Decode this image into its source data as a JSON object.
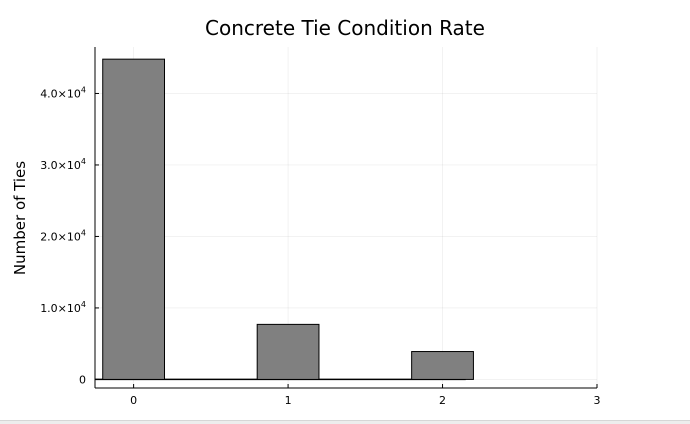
{
  "chart_data": {
    "type": "bar",
    "title": "Concrete Tie Condition Rate",
    "xlabel": "",
    "ylabel": "Number of Ties",
    "categories": [
      0,
      1,
      2
    ],
    "values": [
      44800,
      7700,
      3900
    ],
    "bar_width": 0.4,
    "bar_color": "#808080",
    "bar_edge_color": "#000000",
    "xlim": [
      -0.25,
      3
    ],
    "ylim": [
      -1200,
      46500
    ],
    "xticks": [
      {
        "value": 0,
        "label": "0"
      },
      {
        "value": 1,
        "label": "1"
      },
      {
        "value": 2,
        "label": "2"
      },
      {
        "value": 3,
        "label": "3"
      }
    ],
    "yticks": [
      {
        "value": 0,
        "mantissa": "0",
        "exp": ""
      },
      {
        "value": 10000,
        "mantissa": "1.0×10",
        "exp": "4"
      },
      {
        "value": 20000,
        "mantissa": "2.0×10",
        "exp": "4"
      },
      {
        "value": 30000,
        "mantissa": "3.0×10",
        "exp": "4"
      },
      {
        "value": 40000,
        "mantissa": "4.0×10",
        "exp": "4"
      }
    ],
    "grid": true,
    "legend": "none"
  }
}
